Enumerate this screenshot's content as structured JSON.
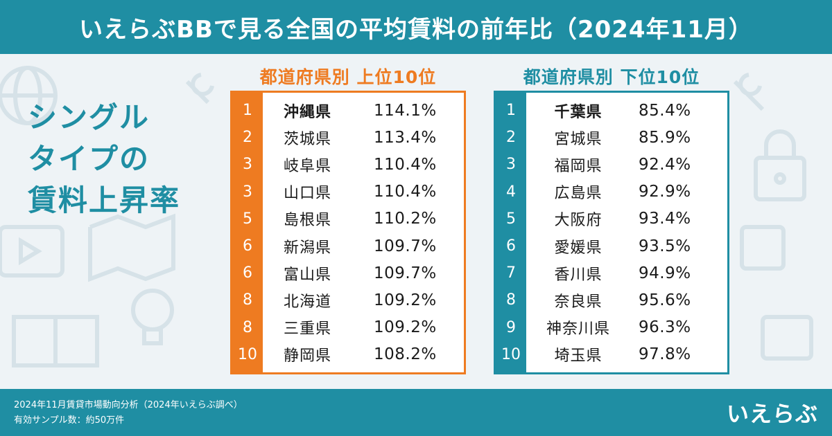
{
  "header": {
    "title": "いえらぶBBで見る全国の平均賃料の前年比（2024年11月）"
  },
  "side_title": {
    "line1": "シングル",
    "line2": "タイプの",
    "line3": "賃料上昇率"
  },
  "top10": {
    "heading": "都道府県別  上位10位",
    "rows": [
      {
        "rank": "1",
        "pref": "沖縄県",
        "ratio": "114.1%"
      },
      {
        "rank": "2",
        "pref": "茨城県",
        "ratio": "113.4%"
      },
      {
        "rank": "3",
        "pref": "岐阜県",
        "ratio": "110.4%"
      },
      {
        "rank": "3",
        "pref": "山口県",
        "ratio": "110.4%"
      },
      {
        "rank": "5",
        "pref": "島根県",
        "ratio": "110.2%"
      },
      {
        "rank": "6",
        "pref": "新潟県",
        "ratio": "109.7%"
      },
      {
        "rank": "6",
        "pref": "富山県",
        "ratio": "109.7%"
      },
      {
        "rank": "8",
        "pref": "北海道",
        "ratio": "109.2%"
      },
      {
        "rank": "8",
        "pref": "三重県",
        "ratio": "109.2%"
      },
      {
        "rank": "10",
        "pref": "静岡県",
        "ratio": "108.2%"
      }
    ]
  },
  "bottom10": {
    "heading": "都道府県別  下位10位",
    "rows": [
      {
        "rank": "1",
        "pref": "千葉県",
        "ratio": "85.4%"
      },
      {
        "rank": "2",
        "pref": "宮城県",
        "ratio": "85.9%"
      },
      {
        "rank": "3",
        "pref": "福岡県",
        "ratio": "92.4%"
      },
      {
        "rank": "4",
        "pref": "広島県",
        "ratio": "92.9%"
      },
      {
        "rank": "5",
        "pref": "大阪府",
        "ratio": "93.4%"
      },
      {
        "rank": "6",
        "pref": "愛媛県",
        "ratio": "93.5%"
      },
      {
        "rank": "7",
        "pref": "香川県",
        "ratio": "94.9%"
      },
      {
        "rank": "8",
        "pref": "奈良県",
        "ratio": "95.6%"
      },
      {
        "rank": "9",
        "pref": "神奈川県",
        "ratio": "96.3%"
      },
      {
        "rank": "10",
        "pref": "埼玉県",
        "ratio": "97.8%"
      }
    ]
  },
  "footer": {
    "line1": "2024年11月賃貸市場動向分析（2024年いえらぶ調べ）",
    "line2": "有効サンプル数：約50万件",
    "logo_text": "いえらぶ"
  },
  "colors": {
    "teal": "#1f8ea3",
    "orange": "#ee7b21"
  },
  "icons": [
    "globe-icon",
    "lock-icon",
    "wrench-icon",
    "video-icon",
    "map-icon",
    "book-icon",
    "lightbulb-icon",
    "puzzle-icon"
  ]
}
